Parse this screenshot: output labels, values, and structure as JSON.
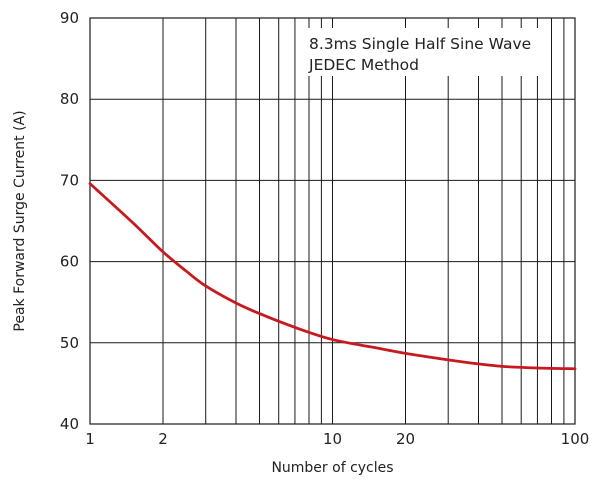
{
  "chart_data": {
    "type": "line",
    "xscale": "log",
    "xlim": [
      1,
      100
    ],
    "ylim": [
      40,
      90
    ],
    "xlabel": "Number of cycles",
    "ylabel": "Peak Forward Surge Current (A)",
    "xtick_labels": [
      {
        "value": 1,
        "label": "1"
      },
      {
        "value": 2,
        "label": "2"
      },
      {
        "value": 10,
        "label": "10"
      },
      {
        "value": 20,
        "label": "20"
      },
      {
        "value": 100,
        "label": "100"
      }
    ],
    "ytick_labels": [
      {
        "value": 40,
        "label": "40"
      },
      {
        "value": 50,
        "label": "50"
      },
      {
        "value": 60,
        "label": "60"
      },
      {
        "value": 70,
        "label": "70"
      },
      {
        "value": 80,
        "label": "80"
      },
      {
        "value": 90,
        "label": "90"
      }
    ],
    "vertical_gridlines": [
      2,
      3,
      4,
      5,
      6,
      7,
      8,
      9,
      10,
      20,
      30,
      40,
      50,
      60,
      70,
      80,
      90
    ],
    "horizontal_gridlines": [
      50,
      60,
      70,
      80
    ],
    "grid": true,
    "annotation": [
      "8.3ms Single Half Sine Wave",
      "JEDEC Method"
    ],
    "series": [
      {
        "color": "#c8191e",
        "x": [
          1,
          1.5,
          2,
          2.5,
          3,
          4,
          5,
          7,
          10,
          15,
          20,
          30,
          40,
          50,
          70,
          100
        ],
        "y": [
          69.6,
          64.8,
          61.2,
          58.8,
          57.0,
          54.9,
          53.6,
          51.9,
          50.4,
          49.4,
          48.7,
          47.9,
          47.4,
          47.1,
          46.9,
          46.8
        ]
      }
    ]
  }
}
